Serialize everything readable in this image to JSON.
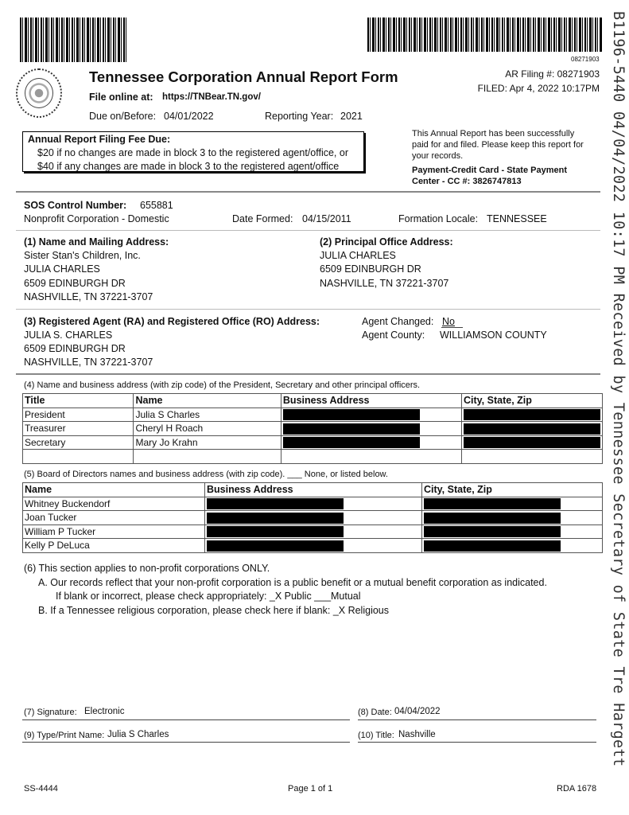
{
  "header": {
    "barcode_number": "08271903",
    "title": "Tennessee Corporation Annual Report Form",
    "file_online_label": "File online at:",
    "file_online_url": "https://TNBear.TN.gov/",
    "due_label": "Due on/Before:",
    "due_date": "04/01/2022",
    "reporting_year_label": "Reporting Year:",
    "reporting_year": "2021",
    "ar_filing": "AR Filing #: 08271903",
    "filed": "FILED: Apr 4, 2022 10:17PM",
    "seal_text": "THE GREAT SEAL OF THE STATE OF TENNESSEE AGRICULTURE COMMERCE 1796"
  },
  "fee_box": {
    "title": "Annual Report Filing Fee Due:",
    "line1": "$20 if no changes are made in block 3 to the registered agent/office, or",
    "line2": "$40 if any changes are made in block 3 to the registered agent/office"
  },
  "payment": {
    "line1": "This Annual Report has been successfully",
    "line2": "paid for and filed. Please keep this report for",
    "line3": "your records.",
    "line4": "Payment-Credit Card  -  State Payment",
    "line5": "Center - CC #: 3826747813"
  },
  "control": {
    "sos_label": "SOS Control Number:",
    "sos_number": "655881",
    "type": "Nonprofit Corporation - Domestic",
    "date_formed_label": "Date Formed:",
    "date_formed": "04/15/2011",
    "locale_label": "Formation Locale:",
    "locale": "TENNESSEE"
  },
  "section1": {
    "title": "(1) Name and Mailing Address:",
    "lines": [
      "Sister Stan's Children, Inc.",
      "JULIA CHARLES",
      "6509 EDINBURGH DR",
      "NASHVILLE, TN  37221-3707"
    ]
  },
  "section2": {
    "title": "(2) Principal Office Address:",
    "lines": [
      "JULIA CHARLES",
      "6509 EDINBURGH DR",
      "NASHVILLE, TN  37221-3707"
    ]
  },
  "section3": {
    "title": "(3) Registered Agent (RA) and Registered Office (RO) Address:",
    "lines": [
      "JULIA S. CHARLES",
      "6509 EDINBURGH DR",
      "NASHVILLE, TN  37221-3707"
    ],
    "agent_changed_label": "Agent Changed:",
    "agent_changed": "No",
    "agent_county_label": "Agent County:",
    "agent_county": "WILLIAMSON COUNTY"
  },
  "section4": {
    "title": "(4)  Name and business address (with zip code) of the President, Secretary and other principal officers.",
    "headers": [
      "Title",
      "Name",
      "Business Address",
      "City, State, Zip"
    ],
    "rows": [
      {
        "title": "President",
        "name": "Julia S Charles"
      },
      {
        "title": "Treasurer",
        "name": "Cheryl H Roach"
      },
      {
        "title": "Secretary",
        "name": "Mary Jo Krahn"
      }
    ]
  },
  "section5": {
    "title": "(5)  Board of Directors names and business address (with zip code).  ___  None, or listed below.",
    "headers": [
      "Name",
      "Business Address",
      "City, State, Zip"
    ],
    "rows": [
      "Whitney Buckendorf",
      "Joan Tucker",
      "William P Tucker",
      "Kelly P DeLuca"
    ]
  },
  "section6": {
    "title": "(6) This section applies to non-profit corporations ONLY.",
    "a": "A.  Our records reflect that your non-profit corporation is a public benefit or a mutual benefit corporation as indicated.",
    "a2": "If blank or incorrect, please check appropriately:  _X Public ___Mutual",
    "b": "B.  If a Tennessee religious corporation, please check here if blank:  _X Religious"
  },
  "signature": {
    "sig_label": "(7) Signature:",
    "sig_value": "Electronic",
    "date_label": "(8) Date:",
    "date_value": "04/04/2022",
    "name_label": "(9) Type/Print Name:",
    "name_value": "Julia S Charles",
    "title_label": "(10) Title:",
    "title_value": "Nashville"
  },
  "footer": {
    "form": "SS-4444",
    "page": "Page 1 of 1",
    "rda": "RDA 1678"
  },
  "stamp": "B1196-5440  04/04/2022  10:17  PM  Received  by  Tennessee  Secretary  of  State  Tre  Hargett"
}
